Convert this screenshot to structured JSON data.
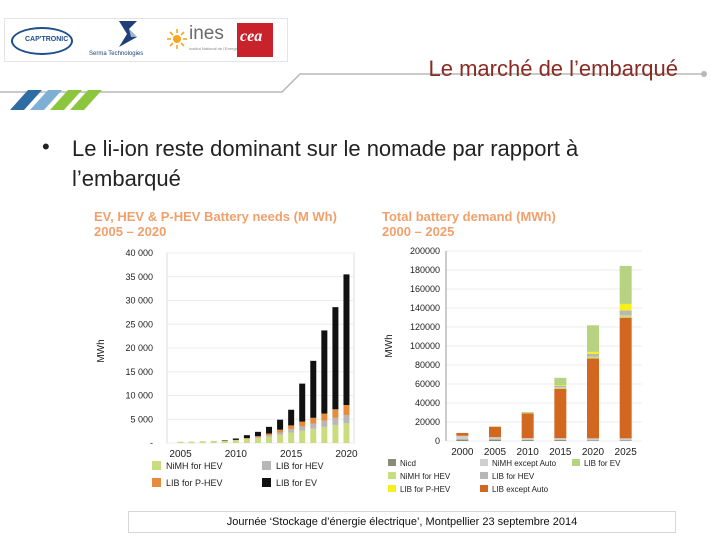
{
  "header": {
    "logos": {
      "captronic": "CAP'TRONIC",
      "serma": "Serma Technologies",
      "ines": "ines",
      "ines_sub": "Institut National de l'Energie Solaire",
      "cea": "cea"
    },
    "title": "Le marché de l’embarqué"
  },
  "bullet": {
    "symbol": "•",
    "text": "Le li-ion reste dominant sur le nomade par rapport à l’embarqué"
  },
  "footer": {
    "text": "Journée ‘Stockage d’énergie électrique’, Montpellier 23 septembre 2014"
  },
  "colors": {
    "title": "#8a2b22",
    "stripe_dark": "#2e6da4",
    "stripe_light": "#7eb0d6",
    "stripe_green": "#8cc63f",
    "rule": "#b8b8b8",
    "chart_title": "#f2a06b",
    "nimh_hev": "#c9dd7f",
    "lib_hev": "#b7b7b7",
    "lib_phev": "#e58b3a",
    "lib_ev": "#111111",
    "nicd": "#8b8b78",
    "nimh_except_auto": "#cfcfcf",
    "lib_except_auto": "#d2671f",
    "lib_phev_2": "#f7ef1a",
    "lib_ev_2": "#b7d280"
  },
  "chart_data": [
    {
      "type": "bar",
      "stacked": true,
      "title": "EV, HEV & P-HEV Battery needs (M Wh) 2005 – 2020",
      "xlabel": "",
      "ylabel": "MWh",
      "ylim": [
        0,
        40000
      ],
      "yticks": [
        "-",
        "5 000",
        "10 000",
        "15 000",
        "20 000",
        "25 000",
        "30 000",
        "35 000",
        "40 000"
      ],
      "xtick_labels": [
        "2005",
        "2010",
        "2015",
        "2020"
      ],
      "categories": [
        2005,
        2006,
        2007,
        2008,
        2009,
        2010,
        2011,
        2012,
        2013,
        2014,
        2015,
        2016,
        2017,
        2018,
        2019,
        2020
      ],
      "series": [
        {
          "name": "NiMH for HEV",
          "values": [
            250,
            300,
            380,
            450,
            500,
            600,
            800,
            1000,
            1300,
            1700,
            2200,
            2600,
            3000,
            3400,
            3800,
            4200
          ]
        },
        {
          "name": "LIB for HEV",
          "values": [
            0,
            0,
            0,
            0,
            0,
            0,
            100,
            200,
            300,
            500,
            700,
            900,
            1100,
            1300,
            1500,
            1700
          ]
        },
        {
          "name": "LIB for P-HEV",
          "values": [
            0,
            0,
            0,
            0,
            0,
            50,
            150,
            250,
            400,
            600,
            800,
            1000,
            1200,
            1500,
            1800,
            2100
          ]
        },
        {
          "name": "LIB for EV",
          "values": [
            0,
            0,
            0,
            0,
            100,
            300,
            600,
            900,
            1400,
            2100,
            3300,
            8000,
            12000,
            17500,
            21500,
            27500
          ]
        }
      ],
      "legend": [
        "NiMH for HEV",
        "LIB for HEV",
        "LIB for P-HEV",
        "LIB for EV"
      ]
    },
    {
      "type": "bar",
      "stacked": true,
      "title": "Total battery demand (MWh) 2000 – 2025",
      "xlabel": "",
      "ylabel": "MWh",
      "ylim": [
        0,
        200000
      ],
      "yticks": [
        "0",
        "20000",
        "40000",
        "60000",
        "80000",
        "100000",
        "120000",
        "140000",
        "160000",
        "180000",
        "200000"
      ],
      "categories": [
        "2000",
        "2005",
        "2010",
        "2015",
        "2020",
        "2025"
      ],
      "series": [
        {
          "name": "Nicd",
          "values": [
            1500,
            1500,
            1000,
            1000,
            800,
            800
          ]
        },
        {
          "name": "NiMH except Auto",
          "values": [
            4000,
            2500,
            2000,
            2000,
            2000,
            2000
          ]
        },
        {
          "name": "LIB except Auto",
          "values": [
            3000,
            11000,
            26000,
            52000,
            84000,
            127000
          ]
        },
        {
          "name": "NiMH for HEV",
          "values": [
            0,
            500,
            1000,
            1500,
            2000,
            2500
          ]
        },
        {
          "name": "LIB for HEV",
          "values": [
            0,
            0,
            0,
            1500,
            3000,
            5000
          ]
        },
        {
          "name": "LIB for P-HEV",
          "values": [
            0,
            0,
            0,
            500,
            2000,
            7000
          ]
        },
        {
          "name": "LIB for EV",
          "values": [
            0,
            0,
            500,
            8000,
            28000,
            40000
          ]
        }
      ],
      "legend": [
        "Nicd",
        "NiMH for HEV",
        "LIB for P-HEV",
        "NiMH except Auto",
        "LIB for HEV",
        "LIB except Auto",
        "LIB for EV"
      ]
    }
  ]
}
